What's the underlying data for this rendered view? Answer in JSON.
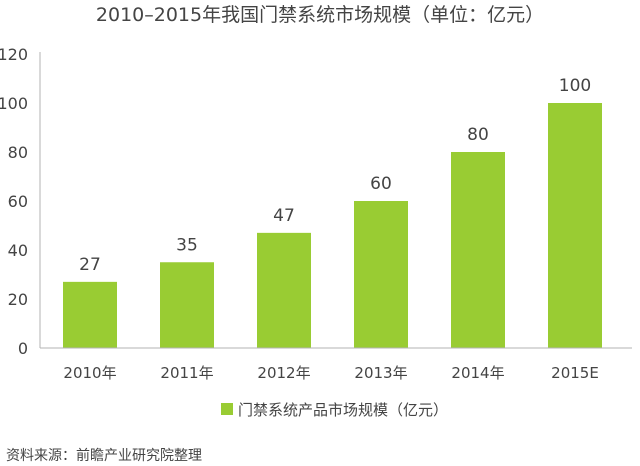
{
  "chart_data": {
    "type": "bar",
    "title": "2010–2015年我国门禁系统市场规模（单位：亿元）",
    "categories": [
      "2010年",
      "2011年",
      "2012年",
      "2013年",
      "2014年",
      "2015E"
    ],
    "series": [
      {
        "name": "门禁系统产品市场规模（亿元）",
        "values": [
          27,
          35,
          47,
          60,
          80,
          100
        ]
      }
    ],
    "yticks": [
      0,
      20,
      40,
      60,
      80,
      100,
      120
    ],
    "ylim": [
      0,
      120
    ],
    "xlabel": "",
    "ylabel": "",
    "grid": false,
    "legend_position": "bottom",
    "bar_color": "#99cc33",
    "axis_color": "#b3b3b3"
  },
  "source_text": "资料来源：前瞻产业研究院整理"
}
